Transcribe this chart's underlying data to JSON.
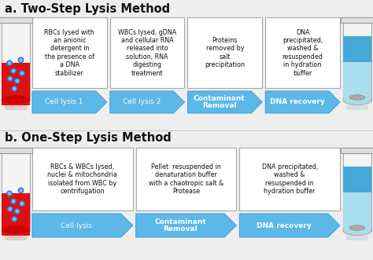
{
  "title_a": "a. Two-Step Lysis Method",
  "title_b": "b. One-Step Lysis Method",
  "bg_color": "#eeeeee",
  "arrow_color": "#5bb8e8",
  "arrow_edge": "#3a9fd4",
  "box_color": "#ffffff",
  "box_edge": "#aaaaaa",
  "text_color": "#111111",
  "title_color": "#111111",
  "section_a_boxes": [
    "RBCs lysed with\nan anionic\ndetergent in\nthe presence of\na DNA\nstabilizer",
    "WBCs lysed, gDNA\nand cellular RNA\nreleased into\nsolution, RNA\ndigesting\ntreatment",
    "Proteins\nremoved by\nsalt\nprecipitation",
    "DNA\nprecipitated,\nwashed &\nresuspended\nin hydration\nbuffer"
  ],
  "section_a_arrows": [
    "Cell lysis 1",
    "Cell lysis 2",
    "Contaminant\nRemoval",
    "DNA recovery"
  ],
  "section_a_arrow_bold": [
    false,
    false,
    true,
    true
  ],
  "section_b_boxes": [
    "RBCs & WBCs lysed,\nnuclei & mitochondria\nisolated from WBC by\ncentrifugation",
    "Pellet  resuspended in\ndenaturation buffer\nwith a chaotropic salt &\nProtease",
    "DNA precipitated,\nwashed &\nresuspended in\nhydration buffer"
  ],
  "section_b_arrows": [
    "Cell lysis",
    "Contaminant\nRemoval",
    "DNA recovery"
  ],
  "section_b_arrow_bold": [
    false,
    true,
    true
  ]
}
